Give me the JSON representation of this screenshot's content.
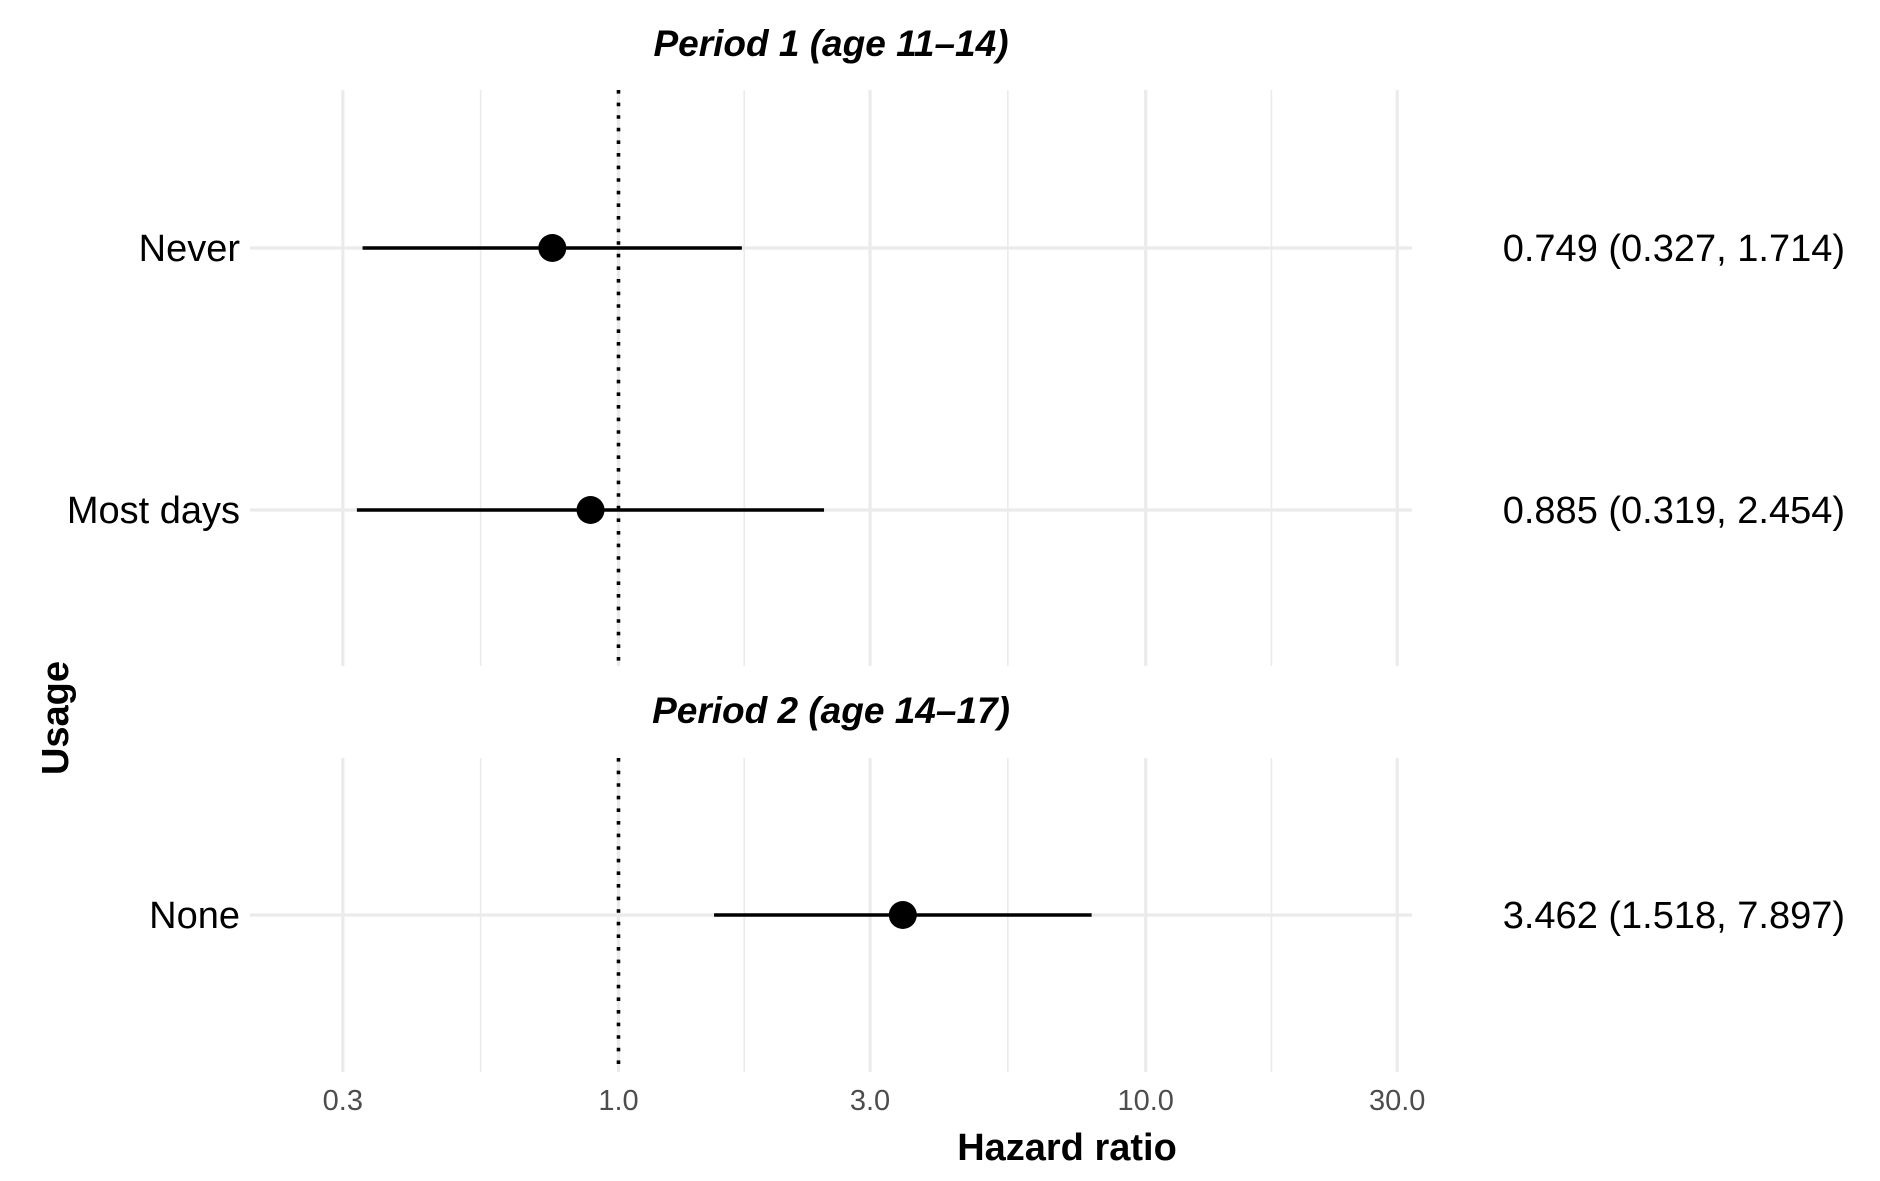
{
  "chart_data": {
    "type": "forest",
    "xlabel": "Hazard ratio",
    "ylabel": "Usage",
    "x_scale": "log",
    "xlim": [
      0.2,
      32
    ],
    "x_ticks": [
      0.3,
      1.0,
      3.0,
      10.0,
      30.0
    ],
    "x_tick_labels": [
      "0.3",
      "1.0",
      "3.0",
      "10.0",
      "30.0"
    ],
    "reference_line": 1.0,
    "grid": true,
    "panels": [
      {
        "title": "Period 1 (age 11–14)",
        "rows": [
          {
            "label": "Never",
            "estimate": 0.749,
            "lower": 0.327,
            "upper": 1.714,
            "annotation": "0.749 (0.327, 1.714)"
          },
          {
            "label": "Most days",
            "estimate": 0.885,
            "lower": 0.319,
            "upper": 2.454,
            "annotation": "0.885 (0.319, 2.454)"
          }
        ]
      },
      {
        "title": "Period 2 (age 14–17)",
        "rows": [
          {
            "label": "None",
            "estimate": 3.462,
            "lower": 1.518,
            "upper": 7.897,
            "annotation": "3.462 (1.518, 7.897)"
          }
        ]
      }
    ]
  }
}
